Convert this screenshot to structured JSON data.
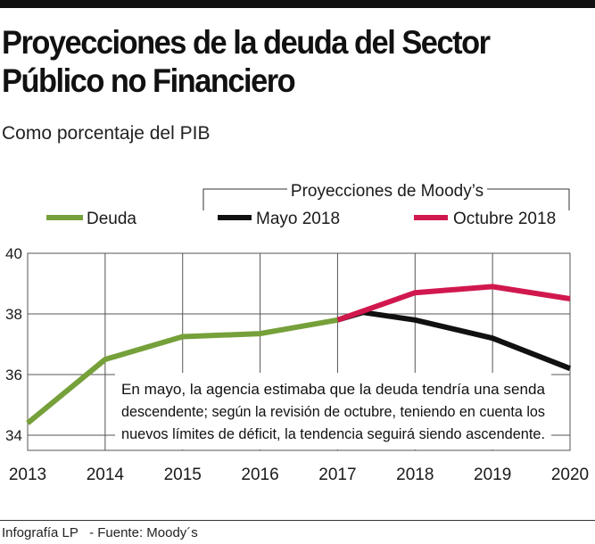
{
  "chart_data": {
    "type": "line",
    "title": "Proyecciones de la deuda del Sector Público no Financiero",
    "subtitle": "Como porcentaje del PIB",
    "x": [
      2013,
      2014,
      2015,
      2016,
      2017,
      2018,
      2019,
      2020
    ],
    "xticks": [
      "2013",
      "2014",
      "2015",
      "2016",
      "2017",
      "2018",
      "2019",
      "2020"
    ],
    "yticks": [
      "34",
      "36",
      "38",
      "40"
    ],
    "ylim": [
      33.5,
      40
    ],
    "grid": true,
    "projection_group_label": "Proyecciones de Moody’s",
    "series": [
      {
        "name": "Deuda",
        "color": "#76a03a",
        "x": [
          2013,
          2014,
          2015,
          2016,
          2017
        ],
        "values": [
          34.4,
          36.5,
          37.25,
          37.35,
          37.8
        ]
      },
      {
        "name": "Mayo 2018",
        "color": "#111111",
        "x": [
          2017,
          2017.33,
          2018,
          2019,
          2020
        ],
        "values": [
          37.8,
          38.05,
          37.8,
          37.2,
          36.2
        ]
      },
      {
        "name": "Octubre 2018",
        "color": "#d1184e",
        "x": [
          2017,
          2018,
          2019,
          2020
        ],
        "values": [
          37.8,
          38.7,
          38.9,
          38.5
        ]
      }
    ],
    "annotation": [
      "En mayo, la agencia estimaba que la deuda tendría una senda",
      "descendente; según la revisión de octubre, teniendo en cuenta los",
      "nuevos límites de déficit, la tendencia seguirá siendo ascendente."
    ]
  },
  "footer": {
    "credit": "Infografía LP",
    "source": "- Fuente: Moody´s"
  }
}
